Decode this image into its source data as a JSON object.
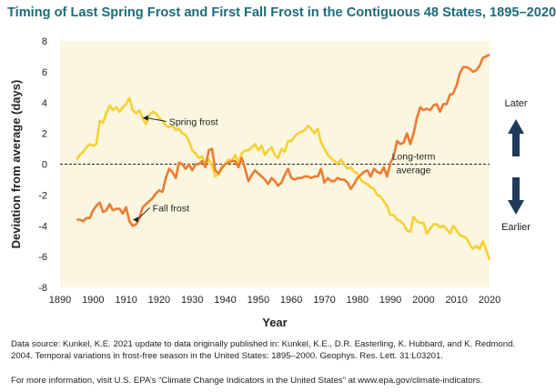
{
  "title": "Timing of Last Spring Frost and First Fall Frost in the Contiguous 48 States, 1895–2020",
  "footnote": {
    "source": "Data source: Kunkel, K.E. 2021 update to data originally published in: Kunkel, K.E., D.R. Easterling, K. Hubbard, and K. Redmond. 2004. Temporal variations in frost-free season in the United States: 1895–2000. Geophys. Res. Lett. 31:L03201.",
    "more_info": "For more information, visit U.S. EPA’s “Climate Change Indicators in the United States” at www.epa.gov/climate-indicators."
  },
  "side_labels": {
    "later": "Later",
    "earlier": "Earlier"
  },
  "colors": {
    "spring": "#f7d033",
    "fall": "#ee7b30",
    "arrows": "#1f3a5a",
    "title": "#1d6c7a",
    "background": "#fbf6e0"
  },
  "chart_data": {
    "type": "line",
    "title": "Timing of Last Spring Frost and First Fall Frost in the Contiguous 48 States, 1895–2020",
    "xlabel": "Year",
    "ylabel": "Deviation from average (days)",
    "xlim": [
      1890,
      2020
    ],
    "ylim": [
      -8,
      8
    ],
    "xticks": [
      1890,
      1900,
      1910,
      1920,
      1930,
      1940,
      1950,
      1960,
      1970,
      1980,
      1990,
      2000,
      2010,
      2020
    ],
    "yticks": [
      -8,
      -6,
      -4,
      -2,
      0,
      2,
      4,
      6,
      8
    ],
    "grid": false,
    "reference_line": {
      "y": 0,
      "label_line1": "Long-term",
      "label_line2": "average"
    },
    "series": [
      {
        "name": "Spring frost",
        "x": [
          1895,
          1896,
          1897,
          1898,
          1899,
          1900,
          1901,
          1902,
          1903,
          1904,
          1905,
          1906,
          1907,
          1908,
          1909,
          1910,
          1911,
          1912,
          1913,
          1914,
          1915,
          1916,
          1917,
          1918,
          1919,
          1920,
          1921,
          1922,
          1923,
          1924,
          1925,
          1926,
          1927,
          1928,
          1929,
          1930,
          1931,
          1932,
          1933,
          1934,
          1935,
          1936,
          1937,
          1938,
          1939,
          1940,
          1941,
          1942,
          1943,
          1944,
          1945,
          1946,
          1947,
          1948,
          1949,
          1950,
          1951,
          1952,
          1953,
          1954,
          1955,
          1956,
          1957,
          1958,
          1959,
          1960,
          1961,
          1962,
          1963,
          1964,
          1965,
          1966,
          1967,
          1968,
          1969,
          1970,
          1971,
          1972,
          1973,
          1974,
          1975,
          1976,
          1977,
          1978,
          1979,
          1980,
          1981,
          1982,
          1983,
          1984,
          1985,
          1986,
          1987,
          1988,
          1989,
          1990,
          1991,
          1992,
          1993,
          1994,
          1995,
          1996,
          1997,
          1998,
          1999,
          2000,
          2001,
          2002,
          2003,
          2004,
          2005,
          2006,
          2007,
          2008,
          2009,
          2010,
          2011,
          2012,
          2013,
          2014,
          2015,
          2016,
          2017,
          2018,
          2019,
          2020
        ],
        "y": [
          0.3,
          0.6,
          0.8,
          1.1,
          1.3,
          1.2,
          1.3,
          2.8,
          2.7,
          3.3,
          3.8,
          3.5,
          3.7,
          3.4,
          3.7,
          3.9,
          4.3,
          3.5,
          3.3,
          3.5,
          3.0,
          2.6,
          3.2,
          3.4,
          3.3,
          3.0,
          2.8,
          2.5,
          2.4,
          2.5,
          2.2,
          2.3,
          2.0,
          1.9,
          1.5,
          0.9,
          0.7,
          0.4,
          0.5,
          0.0,
          0.3,
          -0.1,
          -0.8,
          -0.6,
          -0.3,
          0.0,
          0.3,
          0.2,
          0.6,
          0.1,
          0.7,
          0.9,
          0.9,
          1.1,
          1.3,
          0.9,
          1.2,
          0.6,
          0.9,
          1.1,
          0.6,
          0.4,
          1.0,
          0.8,
          1.5,
          1.5,
          1.8,
          2.0,
          2.1,
          2.2,
          2.5,
          2.3,
          2.0,
          2.3,
          1.4,
          1.0,
          0.6,
          0.4,
          0.2,
          0.0,
          0.3,
          0.0,
          -0.3,
          -0.2,
          -0.5,
          -0.6,
          -1.0,
          -1.2,
          -1.3,
          -1.5,
          -1.6,
          -2.0,
          -2.1,
          -2.4,
          -2.7,
          -3.3,
          -3.3,
          -3.6,
          -3.7,
          -3.9,
          -4.3,
          -4.4,
          -3.4,
          -3.7,
          -3.8,
          -3.8,
          -4.5,
          -4.2,
          -3.9,
          -3.9,
          -4.1,
          -4.0,
          -4.2,
          -4.5,
          -4.0,
          -4.3,
          -4.6,
          -4.7,
          -4.8,
          -5.2,
          -5.5,
          -5.3,
          -5.5,
          -5.0,
          -5.6,
          -6.2
        ]
      },
      {
        "name": "Fall frost",
        "x": [
          1895,
          1896,
          1897,
          1898,
          1899,
          1900,
          1901,
          1902,
          1903,
          1904,
          1905,
          1906,
          1907,
          1908,
          1909,
          1910,
          1911,
          1912,
          1913,
          1914,
          1915,
          1916,
          1917,
          1918,
          1919,
          1920,
          1921,
          1922,
          1923,
          1924,
          1925,
          1926,
          1927,
          1928,
          1929,
          1930,
          1931,
          1932,
          1933,
          1934,
          1935,
          1936,
          1937,
          1938,
          1939,
          1940,
          1941,
          1942,
          1943,
          1944,
          1945,
          1946,
          1947,
          1948,
          1949,
          1950,
          1951,
          1952,
          1953,
          1954,
          1955,
          1956,
          1957,
          1958,
          1959,
          1960,
          1961,
          1962,
          1963,
          1964,
          1965,
          1966,
          1967,
          1968,
          1969,
          1970,
          1971,
          1972,
          1973,
          1974,
          1975,
          1976,
          1977,
          1978,
          1979,
          1980,
          1981,
          1982,
          1983,
          1984,
          1985,
          1986,
          1987,
          1988,
          1989,
          1990,
          1991,
          1992,
          1993,
          1994,
          1995,
          1996,
          1997,
          1998,
          1999,
          2000,
          2001,
          2002,
          2003,
          2004,
          2005,
          2006,
          2007,
          2008,
          2009,
          2010,
          2011,
          2012,
          2013,
          2014,
          2015,
          2016,
          2017,
          2018,
          2019,
          2020
        ],
        "y": [
          -3.6,
          -3.6,
          -3.7,
          -3.5,
          -3.5,
          -3.0,
          -2.7,
          -2.5,
          -3.1,
          -3.0,
          -2.6,
          -3.0,
          -2.9,
          -2.9,
          -3.2,
          -2.8,
          -3.7,
          -4.0,
          -3.9,
          -3.5,
          -2.8,
          -2.6,
          -2.4,
          -2.2,
          -1.9,
          -1.7,
          -1.8,
          -0.9,
          -0.3,
          -0.5,
          -0.9,
          0.1,
          0.0,
          -0.3,
          0.0,
          -0.4,
          0.0,
          0.0,
          0.2,
          -0.2,
          0.9,
          1.0,
          -0.4,
          -0.6,
          -0.2,
          0.0,
          0.1,
          0.2,
          0.2,
          -0.2,
          0.4,
          -0.3,
          -1.1,
          -0.7,
          -0.4,
          -0.6,
          -0.8,
          -1.0,
          -1.3,
          -0.9,
          -1.1,
          -1.4,
          -1.2,
          -0.7,
          -0.3,
          -0.9,
          -1.0,
          -0.9,
          -0.9,
          -0.8,
          -0.8,
          -0.9,
          -0.8,
          -0.8,
          -0.3,
          -1.2,
          -0.9,
          -1.1,
          -1.1,
          -0.9,
          -1.0,
          -1.0,
          -1.2,
          -1.6,
          -1.3,
          -0.9,
          -0.7,
          -0.5,
          -0.4,
          -0.8,
          -0.3,
          -0.5,
          -0.6,
          -0.2,
          -0.8,
          0.1,
          0.5,
          1.5,
          1.3,
          1.4,
          2.0,
          1.3,
          2.0,
          3.0,
          3.7,
          3.5,
          3.6,
          3.5,
          3.8,
          3.9,
          3.4,
          3.9,
          3.9,
          4.5,
          4.6,
          5.1,
          5.9,
          6.3,
          6.3,
          6.2,
          6.0,
          6.1,
          6.4,
          6.9,
          7.0,
          7.1
        ]
      }
    ],
    "annotations": [
      {
        "text": "Spring frost",
        "series": "Spring frost"
      },
      {
        "text": "Fall frost",
        "series": "Fall frost"
      }
    ]
  }
}
